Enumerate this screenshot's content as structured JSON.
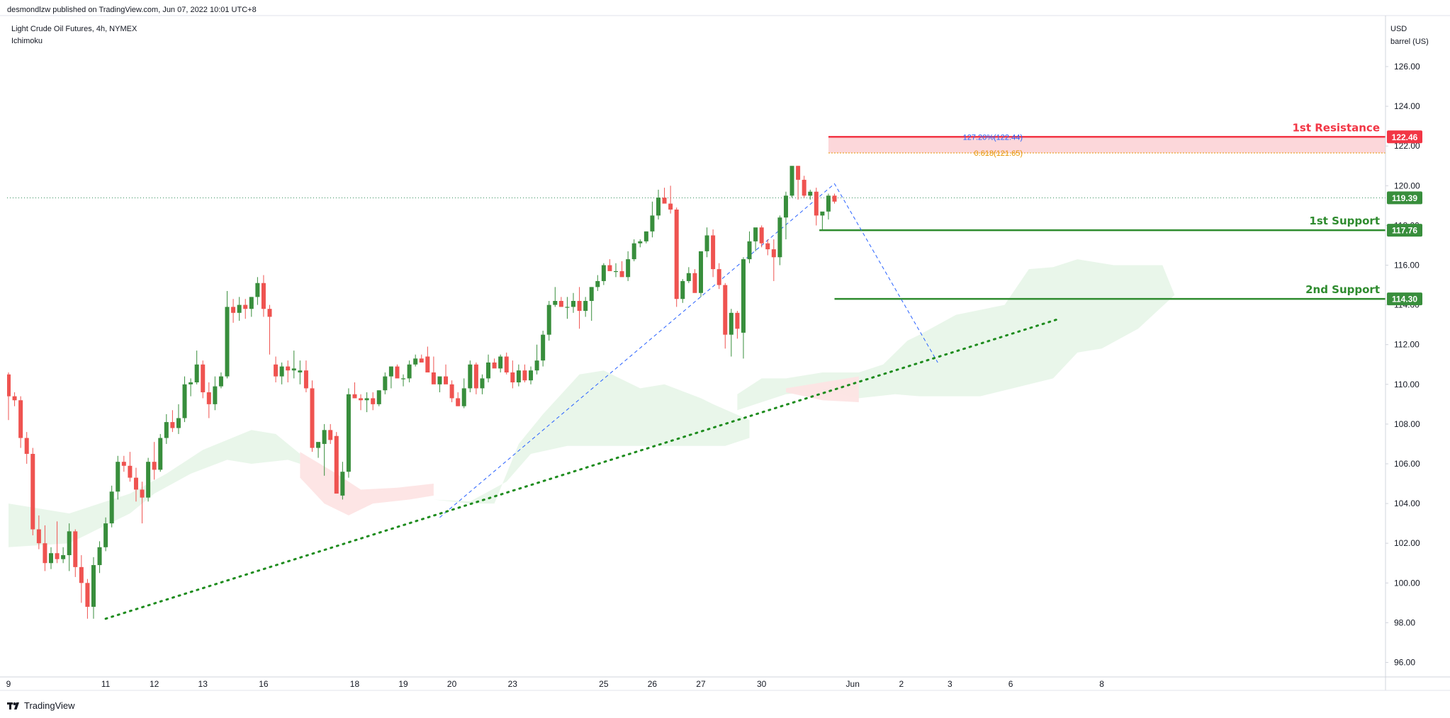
{
  "publisher": "desmondlzw published on TradingView.com, Jun 07, 2022 10:01 UTC+8",
  "symbol": "Light Crude Oil Futures, 4h, NYMEX",
  "indicator": "Ichimoku",
  "currency": "USD",
  "unit": "barrel (US)",
  "brand": "TradingView",
  "colors": {
    "up": "#388e3c",
    "down": "#ef5350",
    "support": "#2e8b2e",
    "resistance": "#f23645",
    "trend": "#1e8c1e",
    "fib_blue": "#2962ff",
    "fib_orange": "#e69500",
    "cloud_bull": "#e8f5e9",
    "cloud_bear": "#fde4e4"
  },
  "chart_data": {
    "type": "candlestick",
    "y_axis": {
      "min": 95.0,
      "max": 128.0,
      "ticks": [
        96,
        98,
        100,
        102,
        104,
        106,
        108,
        110,
        112,
        114,
        116,
        118,
        120,
        122,
        124,
        126
      ],
      "tick_labels": [
        "96.00",
        "98.00",
        "100.00",
        "102.00",
        "104.00",
        "106.00",
        "108.00",
        "110.00",
        "112.00",
        "114.00",
        "116.00",
        "118.00",
        "120.00",
        "122.00",
        "124.00",
        "126.00"
      ]
    },
    "x_labels": [
      {
        "label": "9",
        "bar": 0
      },
      {
        "label": "11",
        "bar": 16
      },
      {
        "label": "12",
        "bar": 24
      },
      {
        "label": "13",
        "bar": 32
      },
      {
        "label": "16",
        "bar": 42
      },
      {
        "label": "18",
        "bar": 57
      },
      {
        "label": "19",
        "bar": 65
      },
      {
        "label": "20",
        "bar": 73
      },
      {
        "label": "23",
        "bar": 83
      },
      {
        "label": "25",
        "bar": 98
      },
      {
        "label": "26",
        "bar": 106
      },
      {
        "label": "27",
        "bar": 114
      },
      {
        "label": "30",
        "bar": 124
      },
      {
        "label": "Jun",
        "bar": 139
      },
      {
        "label": "2",
        "bar": 147
      },
      {
        "label": "3",
        "bar": 155
      },
      {
        "label": "6",
        "bar": 165
      },
      {
        "label": "8",
        "bar": 180
      }
    ],
    "candles": [
      [
        110.5,
        110.6,
        108.2,
        109.4
      ],
      [
        109.4,
        109.6,
        108.9,
        109.2
      ],
      [
        109.2,
        109.4,
        106.8,
        107.3
      ],
      [
        107.3,
        107.6,
        106.0,
        106.5
      ],
      [
        106.5,
        106.8,
        102.4,
        102.7
      ],
      [
        102.7,
        103.4,
        101.7,
        102.0
      ],
      [
        102.0,
        102.9,
        100.6,
        101.0
      ],
      [
        101.0,
        101.8,
        100.7,
        101.5
      ],
      [
        101.5,
        103.1,
        101.0,
        101.2
      ],
      [
        101.2,
        101.8,
        101.0,
        101.4
      ],
      [
        101.4,
        103.0,
        100.6,
        102.6
      ],
      [
        102.6,
        102.7,
        100.3,
        100.8
      ],
      [
        100.8,
        101.4,
        99.0,
        100.0
      ],
      [
        100.0,
        100.2,
        98.2,
        98.8
      ],
      [
        98.8,
        101.3,
        98.2,
        100.9
      ],
      [
        100.9,
        102.1,
        100.5,
        101.8
      ],
      [
        101.8,
        103.3,
        101.6,
        103.0
      ],
      [
        103.0,
        104.9,
        102.8,
        104.6
      ],
      [
        104.6,
        106.4,
        104.2,
        106.1
      ],
      [
        106.1,
        106.4,
        105.6,
        105.9
      ],
      [
        105.9,
        106.6,
        105.1,
        105.3
      ],
      [
        105.3,
        105.8,
        104.1,
        104.7
      ],
      [
        104.7,
        105.1,
        103.0,
        104.3
      ],
      [
        104.3,
        106.3,
        104.1,
        106.1
      ],
      [
        106.1,
        107.1,
        105.2,
        105.7
      ],
      [
        105.7,
        107.5,
        105.6,
        107.3
      ],
      [
        107.3,
        108.5,
        107.0,
        108.1
      ],
      [
        108.1,
        108.7,
        107.6,
        107.8
      ],
      [
        107.8,
        109.0,
        107.5,
        108.3
      ],
      [
        108.3,
        110.4,
        108.1,
        110.0
      ],
      [
        110.0,
        110.3,
        109.4,
        110.1
      ],
      [
        110.1,
        111.7,
        110.0,
        111.0
      ],
      [
        111.0,
        111.2,
        109.3,
        109.6
      ],
      [
        109.6,
        110.1,
        108.3,
        109.0
      ],
      [
        109.0,
        110.4,
        108.7,
        109.9
      ],
      [
        109.9,
        110.6,
        109.8,
        110.4
      ],
      [
        110.4,
        114.7,
        110.3,
        113.9
      ],
      [
        113.9,
        114.3,
        113.1,
        113.6
      ],
      [
        113.6,
        114.4,
        113.2,
        114.0
      ],
      [
        114.0,
        114.3,
        113.3,
        113.8
      ],
      [
        113.8,
        114.4,
        113.4,
        114.4
      ],
      [
        114.4,
        115.4,
        114.0,
        115.1
      ],
      [
        115.1,
        115.5,
        113.4,
        113.8
      ],
      [
        113.8,
        114.0,
        111.5,
        113.4
      ],
      [
        111.0,
        111.4,
        110.1,
        110.4
      ],
      [
        110.4,
        111.1,
        110.0,
        110.9
      ],
      [
        110.9,
        111.2,
        110.1,
        110.7
      ],
      [
        110.7,
        111.7,
        110.3,
        110.8
      ],
      [
        110.6,
        111.2,
        110.0,
        110.7
      ],
      [
        110.7,
        111.2,
        109.6,
        109.8
      ],
      [
        109.8,
        110.2,
        106.6,
        106.8
      ],
      [
        106.8,
        107.0,
        106.3,
        107.1
      ],
      [
        107.0,
        108.0,
        105.4,
        107.7
      ],
      [
        107.7,
        108.0,
        107.0,
        107.2
      ],
      [
        107.4,
        107.6,
        104.5,
        104.5
      ],
      [
        104.4,
        106.1,
        104.2,
        105.6
      ],
      [
        105.6,
        109.8,
        105.3,
        109.5
      ],
      [
        109.5,
        110.1,
        109.3,
        109.3
      ],
      [
        109.3,
        109.5,
        108.7,
        109.2
      ],
      [
        109.2,
        109.6,
        108.6,
        109.3
      ],
      [
        109.3,
        109.6,
        108.7,
        109.0
      ],
      [
        109.0,
        109.7,
        108.9,
        109.7
      ],
      [
        109.7,
        110.6,
        109.5,
        110.4
      ],
      [
        110.4,
        110.9,
        109.8,
        110.9
      ],
      [
        110.9,
        111.0,
        110.5,
        110.3
      ],
      [
        110.3,
        110.5,
        109.9,
        110.3
      ],
      [
        110.3,
        111.2,
        110.1,
        111.0
      ],
      [
        111.0,
        111.5,
        110.9,
        111.3
      ],
      [
        111.3,
        111.5,
        111.1,
        111.1
      ],
      [
        111.4,
        111.9,
        110.7,
        110.6
      ],
      [
        110.6,
        111.4,
        110.2,
        110.0
      ],
      [
        110.0,
        110.3,
        109.6,
        110.4
      ],
      [
        110.4,
        111.0,
        110.2,
        110.0
      ],
      [
        110.0,
        110.2,
        109.1,
        109.3
      ],
      [
        109.3,
        109.6,
        108.9,
        108.9
      ],
      [
        108.9,
        110.3,
        108.8,
        109.8
      ],
      [
        109.8,
        111.2,
        109.6,
        111.0
      ],
      [
        111.0,
        111.1,
        109.5,
        109.8
      ],
      [
        109.8,
        110.5,
        109.5,
        110.3
      ],
      [
        110.3,
        111.5,
        110.1,
        111.1
      ],
      [
        111.1,
        111.3,
        110.9,
        110.8
      ],
      [
        110.8,
        111.5,
        110.6,
        111.4
      ],
      [
        111.4,
        111.6,
        110.5,
        110.6
      ],
      [
        110.6,
        111.2,
        109.8,
        110.1
      ],
      [
        110.1,
        111.0,
        109.9,
        110.7
      ],
      [
        110.7,
        111.0,
        110.1,
        110.2
      ],
      [
        110.2,
        110.9,
        110.0,
        110.7
      ],
      [
        110.7,
        112.0,
        110.5,
        111.2
      ],
      [
        111.2,
        112.7,
        110.9,
        112.5
      ],
      [
        112.5,
        114.2,
        112.2,
        114.0
      ],
      [
        114.0,
        114.9,
        113.9,
        114.2
      ],
      [
        114.2,
        114.4,
        113.9,
        113.9
      ],
      [
        113.9,
        114.4,
        113.3,
        113.9
      ],
      [
        113.9,
        114.6,
        113.6,
        114.2
      ],
      [
        114.2,
        114.9,
        112.8,
        113.7
      ],
      [
        113.7,
        114.4,
        113.4,
        114.2
      ],
      [
        114.2,
        114.9,
        113.2,
        114.9
      ],
      [
        114.9,
        115.5,
        114.7,
        115.2
      ],
      [
        115.2,
        116.1,
        115.0,
        116.0
      ],
      [
        116.0,
        116.3,
        115.8,
        115.7
      ],
      [
        115.7,
        116.1,
        115.4,
        115.7
      ],
      [
        115.7,
        116.2,
        115.5,
        115.4
      ],
      [
        115.4,
        116.7,
        115.2,
        116.3
      ],
      [
        116.3,
        117.3,
        116.2,
        117.1
      ],
      [
        117.1,
        117.3,
        116.9,
        117.2
      ],
      [
        117.2,
        117.7,
        117.1,
        117.7
      ],
      [
        117.7,
        119.2,
        117.4,
        118.5
      ],
      [
        118.5,
        119.8,
        118.3,
        119.4
      ],
      [
        119.4,
        119.9,
        119.2,
        119.1
      ],
      [
        119.1,
        120.0,
        118.6,
        118.8
      ],
      [
        118.8,
        118.9,
        113.9,
        114.3
      ],
      [
        114.3,
        115.3,
        114.1,
        115.2
      ],
      [
        115.2,
        115.9,
        115.1,
        115.6
      ],
      [
        115.6,
        115.8,
        114.7,
        114.6
      ],
      [
        114.6,
        116.6,
        114.4,
        116.7
      ],
      [
        116.7,
        117.9,
        116.4,
        117.5
      ],
      [
        117.5,
        117.8,
        115.4,
        115.8
      ],
      [
        115.8,
        116.1,
        114.8,
        115.0
      ],
      [
        115.0,
        115.1,
        111.8,
        112.5
      ],
      [
        112.5,
        113.8,
        111.4,
        113.6
      ],
      [
        113.6,
        113.7,
        112.3,
        112.8
      ],
      [
        112.6,
        116.4,
        111.3,
        116.3
      ],
      [
        116.3,
        117.7,
        116.1,
        117.2
      ],
      [
        117.2,
        117.8,
        116.7,
        117.9
      ],
      [
        117.9,
        118.0,
        116.9,
        117.1
      ],
      [
        117.1,
        117.3,
        116.5,
        116.8
      ],
      [
        116.8,
        117.3,
        115.2,
        116.4
      ],
      [
        116.4,
        118.5,
        116.0,
        118.4
      ],
      [
        118.4,
        119.7,
        117.3,
        119.5
      ],
      [
        119.5,
        120.7,
        119.4,
        121.0
      ],
      [
        121.0,
        121.0,
        119.3,
        120.3
      ],
      [
        120.3,
        120.5,
        119.4,
        119.5
      ],
      [
        119.5,
        119.8,
        119.3,
        119.7
      ],
      [
        119.7,
        119.9,
        118.0,
        118.5
      ],
      [
        118.5,
        118.6,
        117.8,
        118.7
      ],
      [
        118.7,
        119.6,
        118.3,
        119.5
      ],
      [
        119.5,
        119.6,
        119.1,
        119.2
      ]
    ],
    "current_price": 119.39,
    "levels": [
      {
        "name": "1st Resistance",
        "price": 122.46,
        "tag": "122.46",
        "type": "resistance"
      },
      {
        "name": "1st Support",
        "price": 117.76,
        "tag": "117.76",
        "type": "support"
      },
      {
        "name": "2nd Support",
        "price": 114.3,
        "tag": "114.30",
        "type": "support"
      }
    ],
    "last_price_tag": "119.39",
    "fib_labels": {
      "ext": "127.20%(122.44)",
      "retr": "0.618(121.65)"
    },
    "trendline": {
      "from": {
        "bar": 16,
        "price": 98.2
      },
      "to": {
        "bar": 173,
        "price": 113.3
      }
    },
    "fib_path": [
      {
        "bar": 71,
        "price": 103.3
      },
      {
        "bar": 136,
        "price": 120.1
      },
      {
        "bar": 153,
        "price": 111.1
      }
    ],
    "cloud": {
      "bull": [
        [
          [
            0,
            104.0
          ],
          [
            10,
            103.5
          ],
          [
            20,
            104.5
          ],
          [
            26,
            105.5
          ],
          [
            32,
            106.7
          ],
          [
            40,
            107.7
          ],
          [
            44,
            107.5
          ],
          [
            48,
            106.5
          ],
          [
            48,
            106.0
          ],
          [
            58,
            105.6
          ],
          [
            64,
            105.0
          ],
          [
            70,
            104.2
          ],
          [
            76,
            104.0
          ],
          [
            80,
            104.0
          ],
          [
            84,
            107.0
          ],
          [
            88,
            108.5
          ],
          [
            94,
            110.5
          ],
          [
            98,
            110.7
          ],
          [
            104,
            109.8
          ],
          [
            108,
            110.0
          ],
          [
            114,
            109.3
          ],
          [
            116,
            109.0
          ],
          [
            122,
            108.2
          ],
          [
            122,
            107.3
          ],
          [
            118,
            106.9
          ],
          [
            110,
            106.9
          ],
          [
            100,
            106.9
          ],
          [
            92,
            106.9
          ],
          [
            86,
            106.5
          ],
          [
            82,
            105.1
          ],
          [
            76,
            104.1
          ],
          [
            70,
            104.2
          ],
          [
            64,
            105.0
          ],
          [
            58,
            105.6
          ],
          [
            48,
            106.0
          ],
          [
            46,
            106.2
          ],
          [
            40,
            106.0
          ],
          [
            36,
            106.2
          ],
          [
            30,
            105.5
          ],
          [
            24,
            104.5
          ],
          [
            20,
            103.5
          ],
          [
            10,
            102.0
          ],
          [
            0,
            101.8
          ]
        ],
        [
          [
            120,
            109.5
          ],
          [
            124,
            110.3
          ],
          [
            128,
            110.3
          ],
          [
            134,
            110.6
          ],
          [
            140,
            110.6
          ],
          [
            144,
            111.0
          ],
          [
            148,
            112.2
          ],
          [
            150,
            112.5
          ],
          [
            156,
            113.5
          ],
          [
            164,
            114.0
          ],
          [
            168,
            115.8
          ],
          [
            172,
            115.9
          ],
          [
            176,
            116.3
          ],
          [
            182,
            116.0
          ],
          [
            190,
            116.0
          ],
          [
            192,
            114.5
          ],
          [
            186,
            112.8
          ],
          [
            180,
            111.8
          ],
          [
            176,
            111.6
          ],
          [
            172,
            110.3
          ],
          [
            164,
            109.7
          ],
          [
            160,
            109.4
          ],
          [
            150,
            109.4
          ],
          [
            146,
            109.5
          ],
          [
            140,
            109.3
          ],
          [
            134,
            109.7
          ],
          [
            128,
            109.5
          ],
          [
            120,
            108.7
          ]
        ]
      ],
      "bear": [
        [
          [
            48,
            106.6
          ],
          [
            54,
            105.5
          ],
          [
            58,
            104.7
          ],
          [
            64,
            104.8
          ],
          [
            70,
            105.0
          ],
          [
            70,
            104.4
          ],
          [
            66,
            104.2
          ],
          [
            60,
            104.0
          ],
          [
            56,
            103.4
          ],
          [
            52,
            104.0
          ],
          [
            48,
            105.3
          ]
        ],
        [
          [
            128,
            109.8
          ],
          [
            134,
            110.1
          ],
          [
            140,
            110.4
          ],
          [
            140,
            109.1
          ],
          [
            134,
            109.2
          ],
          [
            128,
            109.6
          ]
        ]
      ]
    }
  }
}
